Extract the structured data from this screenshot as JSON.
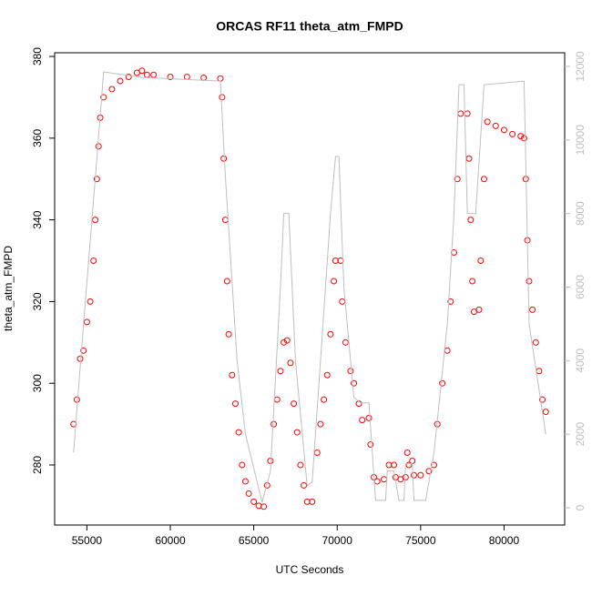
{
  "chart_data": {
    "type": "scatter",
    "title": "ORCAS RF11 theta_atm_FMPD",
    "x_label": "UTC Seconds",
    "y_label": "theta_atm_FMPD",
    "xlim": [
      53068,
      83632
    ],
    "xticks": [
      55000,
      60000,
      65000,
      70000,
      75000,
      80000
    ],
    "ylim": [
      265.3,
      380.9
    ],
    "yticks": [
      280,
      300,
      320,
      340,
      360,
      380
    ],
    "y2lim": [
      -470,
      12370
    ],
    "y2ticks": [
      0,
      2000,
      4000,
      6000,
      8000,
      10000,
      12000
    ],
    "series": [
      {
        "type": "scatter",
        "color": "#ff0000",
        "x": [
          54200,
          54400,
          54600,
          54800,
          55000,
          55200,
          55400,
          55500,
          55600,
          55700,
          55800,
          56000,
          56500,
          57000,
          57500,
          58000,
          58300,
          58600,
          59000,
          60000,
          61000,
          62000,
          63000,
          63100,
          63200,
          63300,
          63400,
          63500,
          63700,
          63900,
          64100,
          64300,
          64500,
          64700,
          65000,
          65300,
          65600,
          65800,
          66000,
          66200,
          66400,
          66600,
          66800,
          67000,
          67200,
          67400,
          67600,
          67800,
          68000,
          68200,
          68500,
          68800,
          69000,
          69200,
          69400,
          69600,
          69800,
          69900,
          70200,
          70300,
          70500,
          70800,
          71000,
          71300,
          71500,
          71900,
          72000,
          72200,
          72400,
          72800,
          73100,
          73400,
          73500,
          73800,
          74100,
          74200,
          74300,
          74500,
          74600,
          75000,
          75500,
          75800,
          76000,
          76300,
          76600,
          76800,
          77000,
          77200,
          77400,
          77800,
          77900,
          78000,
          78100,
          78200,
          78500,
          78600,
          78800,
          79000,
          79500,
          80000,
          80500,
          81000,
          81200,
          81300,
          81400,
          81500,
          81700,
          81900,
          82100,
          82300,
          82500
        ],
        "values": [
          290,
          296,
          306,
          308,
          315,
          320,
          330,
          340,
          350,
          358,
          365,
          370,
          372,
          374,
          375,
          376,
          376.5,
          375.5,
          375.5,
          375,
          375,
          374.8,
          374.6,
          370,
          355,
          340,
          325,
          312,
          302,
          295,
          288,
          280,
          276,
          273,
          271,
          270,
          269.8,
          275,
          281,
          290,
          296,
          303,
          310,
          310.5,
          305,
          295,
          288,
          280,
          275,
          271,
          271,
          283,
          290,
          296,
          302,
          312,
          325,
          330,
          330,
          320,
          310,
          303,
          300,
          295,
          291,
          291.5,
          285,
          277,
          276,
          276.5,
          280,
          280,
          277,
          276.5,
          277,
          283,
          280,
          281,
          277.5,
          277.5,
          278.5,
          280,
          290,
          300,
          308,
          320,
          332,
          350,
          366,
          366,
          355,
          340,
          325,
          317.5,
          318,
          330,
          350,
          364,
          363,
          362,
          361,
          360.5,
          360,
          350,
          335,
          325,
          318,
          310,
          303,
          296,
          293
        ]
      },
      {
        "type": "line",
        "color": "#bebebe",
        "axis": "y2",
        "x": [
          54200,
          54800,
          55600,
          56000,
          58300,
          63000,
          63300,
          64000,
          64500,
          65500,
          66000,
          66600,
          66800,
          67100,
          67500,
          68200,
          68500,
          69000,
          69600,
          69900,
          70100,
          70400,
          71000,
          71400,
          71900,
          72300,
          72900,
          73000,
          73400,
          73700,
          74000,
          74100,
          74500,
          74600,
          75300,
          75800,
          76600,
          77000,
          77300,
          77600,
          77800,
          78300,
          78800,
          81200,
          81500,
          82500
        ],
        "values": [
          1500,
          5000,
          9500,
          11850,
          11700,
          11600,
          9000,
          4000,
          2000,
          150,
          1000,
          6000,
          8000,
          8000,
          4000,
          600,
          700,
          4000,
          8000,
          9550,
          9550,
          6000,
          3000,
          2850,
          2850,
          200,
          200,
          1000,
          1000,
          200,
          200,
          1200,
          1200,
          200,
          200,
          1500,
          5000,
          8000,
          11500,
          11500,
          8000,
          8000,
          11500,
          11600,
          5000,
          2000
        ]
      }
    ]
  }
}
